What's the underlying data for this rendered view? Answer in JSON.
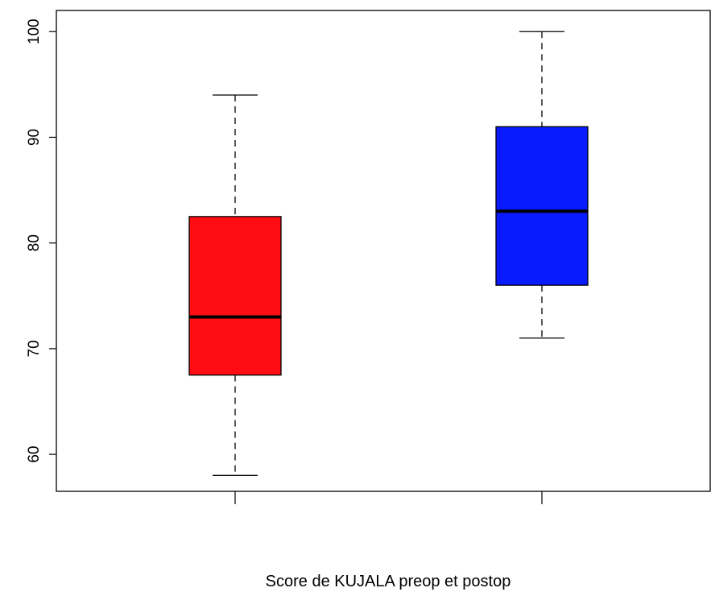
{
  "chart_data": {
    "type": "boxplot",
    "title": "",
    "xlabel": "Score de KUJALA preop et postop",
    "ylabel": "",
    "ylim": [
      56.5,
      102
    ],
    "yticks": [
      60,
      70,
      80,
      90,
      100
    ],
    "grid": false,
    "legend": "none",
    "series": [
      {
        "min": 58,
        "q1": 67.5,
        "median": 73,
        "q3": 82.5,
        "max": 94,
        "color": "#ff0d12"
      },
      {
        "min": 71,
        "q1": 76,
        "median": 83,
        "q3": 91,
        "max": 100,
        "color": "#0a1aff"
      }
    ]
  }
}
